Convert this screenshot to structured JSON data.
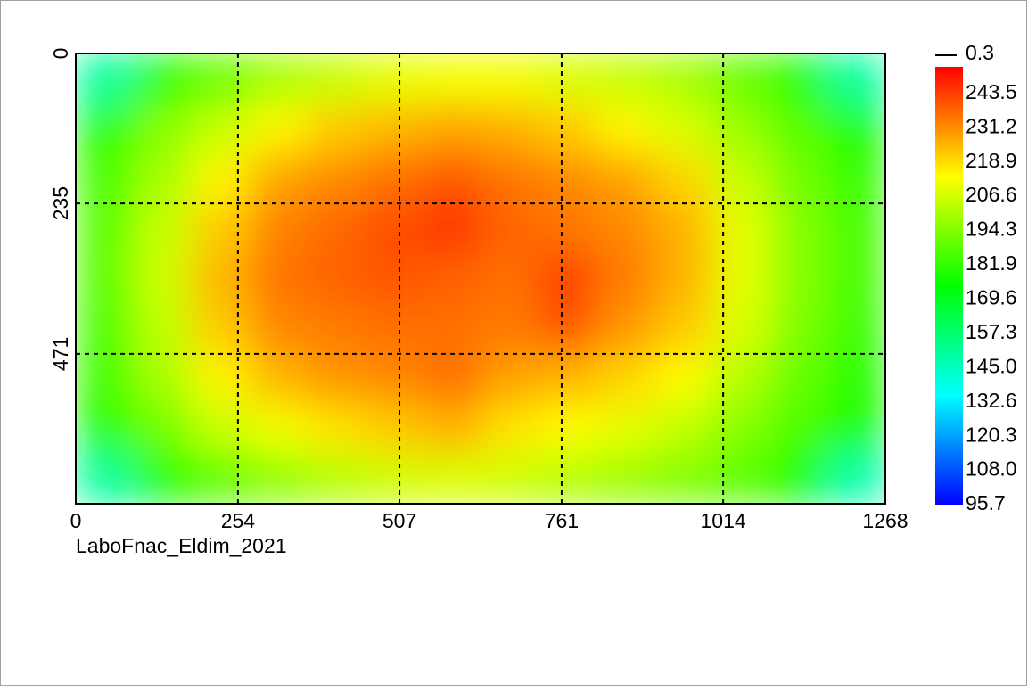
{
  "chart_data": {
    "type": "heatmap",
    "caption": "LaboFnac_Eldim_2021",
    "xlim": [
      0,
      1268
    ],
    "xticks": [
      0,
      254,
      507,
      761,
      1014,
      1268
    ],
    "ylim": [
      706,
      0
    ],
    "yticks": [
      0,
      235,
      471
    ],
    "grid": true,
    "zlim": [
      95.7,
      253.1
    ],
    "colormap": [
      "#0000ff",
      "#00ffff",
      "#00ff00",
      "#ffff00",
      "#ff0000"
    ],
    "colorbar_marker": 0.3,
    "colorbar_ticks": [
      243.5,
      231.2,
      218.9,
      206.6,
      194.3,
      181.9,
      169.6,
      157.3,
      {
        "value": 145,
        "label": "145.0"
      },
      132.6,
      120.3,
      {
        "value": 108,
        "label": "108.0"
      },
      95.7
    ],
    "z": [
      [
        150,
        180,
        190,
        200,
        205,
        210,
        212,
        212,
        208,
        205,
        200,
        190,
        180,
        150
      ],
      [
        180,
        195,
        205,
        215,
        222,
        225,
        228,
        226,
        222,
        215,
        208,
        198,
        188,
        178
      ],
      [
        185,
        200,
        215,
        228,
        232,
        236,
        240,
        235,
        232,
        228,
        220,
        205,
        192,
        182
      ],
      [
        188,
        205,
        222,
        233,
        237,
        241,
        245,
        238,
        235,
        232,
        226,
        210,
        195,
        185
      ],
      [
        188,
        206,
        225,
        235,
        238,
        240,
        238,
        236,
        243,
        234,
        226,
        210,
        195,
        185
      ],
      [
        186,
        204,
        222,
        232,
        234,
        236,
        236,
        234,
        240,
        230,
        222,
        208,
        194,
        183
      ],
      [
        184,
        200,
        215,
        225,
        230,
        232,
        236,
        228,
        225,
        220,
        214,
        202,
        190,
        180
      ],
      [
        180,
        192,
        205,
        212,
        218,
        222,
        226,
        218,
        214,
        210,
        204,
        195,
        186,
        178
      ],
      [
        150,
        178,
        188,
        196,
        202,
        206,
        208,
        206,
        202,
        198,
        194,
        188,
        178,
        148
      ]
    ]
  }
}
